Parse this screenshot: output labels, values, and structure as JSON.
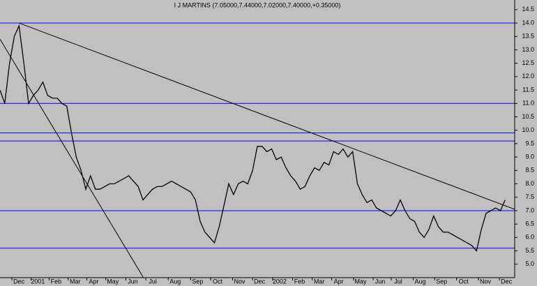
{
  "chart_data": {
    "type": "line",
    "title": "I J MARTINS (7.05000,7.44000,7.02000,7.40000,+0.35000)",
    "color": "#000000",
    "x": [
      0,
      1,
      2,
      3,
      4,
      5,
      6,
      7,
      8,
      9,
      10,
      11,
      12,
      13,
      14,
      15,
      16,
      17,
      18,
      19,
      20,
      21,
      22,
      23,
      24,
      25,
      26,
      27,
      28,
      29,
      30,
      31,
      32,
      33,
      34,
      35,
      36,
      37,
      38,
      39,
      40,
      41,
      42,
      43,
      44,
      45,
      46,
      47,
      48,
      49,
      50,
      51,
      52,
      53,
      54,
      55,
      56,
      57,
      58,
      59,
      60,
      61,
      62,
      63,
      64,
      65,
      66,
      67,
      68,
      69,
      70,
      71,
      72,
      73,
      74,
      75,
      76,
      77,
      78,
      79,
      80,
      81,
      82,
      83,
      84,
      85,
      86,
      87,
      88,
      89,
      90,
      91,
      92,
      93,
      94,
      95,
      96,
      97,
      98,
      99,
      100,
      101,
      102,
      103,
      104,
      105,
      106
    ],
    "values": [
      11.5,
      11.0,
      12.5,
      13.5,
      13.9,
      12.5,
      11.0,
      11.3,
      11.5,
      11.8,
      11.3,
      11.2,
      11.2,
      11.0,
      10.9,
      9.9,
      9.0,
      8.5,
      7.8,
      8.3,
      7.8,
      7.8,
      7.9,
      8.0,
      8.0,
      8.1,
      8.2,
      8.3,
      8.1,
      7.9,
      7.4,
      7.6,
      7.8,
      7.9,
      7.9,
      8.0,
      8.1,
      8.0,
      7.9,
      7.8,
      7.7,
      7.4,
      6.6,
      6.2,
      6.0,
      5.8,
      6.4,
      7.2,
      8.0,
      7.6,
      8.0,
      8.1,
      8.0,
      8.5,
      9.4,
      9.4,
      9.2,
      9.3,
      8.9,
      9.0,
      8.6,
      8.3,
      8.1,
      7.8,
      7.9,
      8.3,
      8.6,
      8.5,
      8.8,
      8.7,
      9.2,
      9.1,
      9.3,
      9.0,
      9.2,
      8.0,
      7.6,
      7.3,
      7.4,
      7.1,
      7.0,
      6.9,
      6.8,
      7.0,
      7.4,
      7.0,
      6.7,
      6.6,
      6.2,
      6.0,
      6.3,
      6.8,
      6.4,
      6.2,
      6.2,
      6.1,
      6.0,
      5.9,
      5.8,
      5.7,
      5.5,
      6.3,
      6.9,
      7.0,
      7.1,
      7.0,
      7.4
    ],
    "xlim": [
      0,
      108
    ],
    "xticks": [
      {
        "value": 2.5,
        "label": "Dec"
      },
      {
        "value": 6.5,
        "label": "2001"
      },
      {
        "value": 10.3,
        "label": "Feb"
      },
      {
        "value": 14.3,
        "label": "Mar"
      },
      {
        "value": 18.2,
        "label": "Apr"
      },
      {
        "value": 22.2,
        "label": "May"
      },
      {
        "value": 26.4,
        "label": "Jun"
      },
      {
        "value": 30.6,
        "label": "Jul"
      },
      {
        "value": 35.3,
        "label": "Aug"
      },
      {
        "value": 40,
        "label": "Sep"
      },
      {
        "value": 44.2,
        "label": "Oct"
      },
      {
        "value": 48.8,
        "label": "Nov"
      },
      {
        "value": 53,
        "label": "Dec"
      },
      {
        "value": 57.2,
        "label": "2002"
      },
      {
        "value": 61.4,
        "label": "Feb"
      },
      {
        "value": 65.5,
        "label": "Mar"
      },
      {
        "value": 69.6,
        "label": "Apr"
      },
      {
        "value": 74.2,
        "label": "May"
      },
      {
        "value": 78.3,
        "label": "Jun"
      },
      {
        "value": 82.1,
        "label": "Jul"
      },
      {
        "value": 86.7,
        "label": "Aug"
      },
      {
        "value": 91.2,
        "label": "Sep"
      },
      {
        "value": 95.8,
        "label": "Oct"
      },
      {
        "value": 100.4,
        "label": "Nov"
      },
      {
        "value": 104.8,
        "label": "Dec"
      }
    ],
    "ylim": [
      4.5,
      14.86
    ],
    "yticks": [
      {
        "value": 5,
        "label": "5.0"
      },
      5.5,
      {
        "value": 6,
        "label": "6.0"
      },
      6.5,
      {
        "value": 7,
        "label": "7.0"
      },
      7.5,
      {
        "value": 8,
        "label": "8.0"
      },
      8.5,
      {
        "value": 9,
        "label": "9.0"
      },
      9.5,
      {
        "value": 10,
        "label": "10.0"
      },
      10.5,
      {
        "value": 11,
        "label": "11.0"
      },
      11.5,
      {
        "value": 12,
        "label": "12.0"
      },
      12.5,
      {
        "value": 13,
        "label": "13.0"
      },
      13.5,
      {
        "value": 14,
        "label": "14.0"
      },
      14.5
    ],
    "hlines": {
      "color": "#0000ff",
      "values": [
        14.0,
        11.0,
        9.9,
        9.6,
        7.0,
        5.6
      ]
    },
    "trendlines": [
      {
        "color": "#000000",
        "x": [
          4,
          108
        ],
        "values": [
          14.0,
          7.05
        ]
      },
      {
        "color": "#000000",
        "x": [
          0,
          30.1
        ],
        "values": [
          13.4,
          4.5
        ]
      }
    ]
  }
}
